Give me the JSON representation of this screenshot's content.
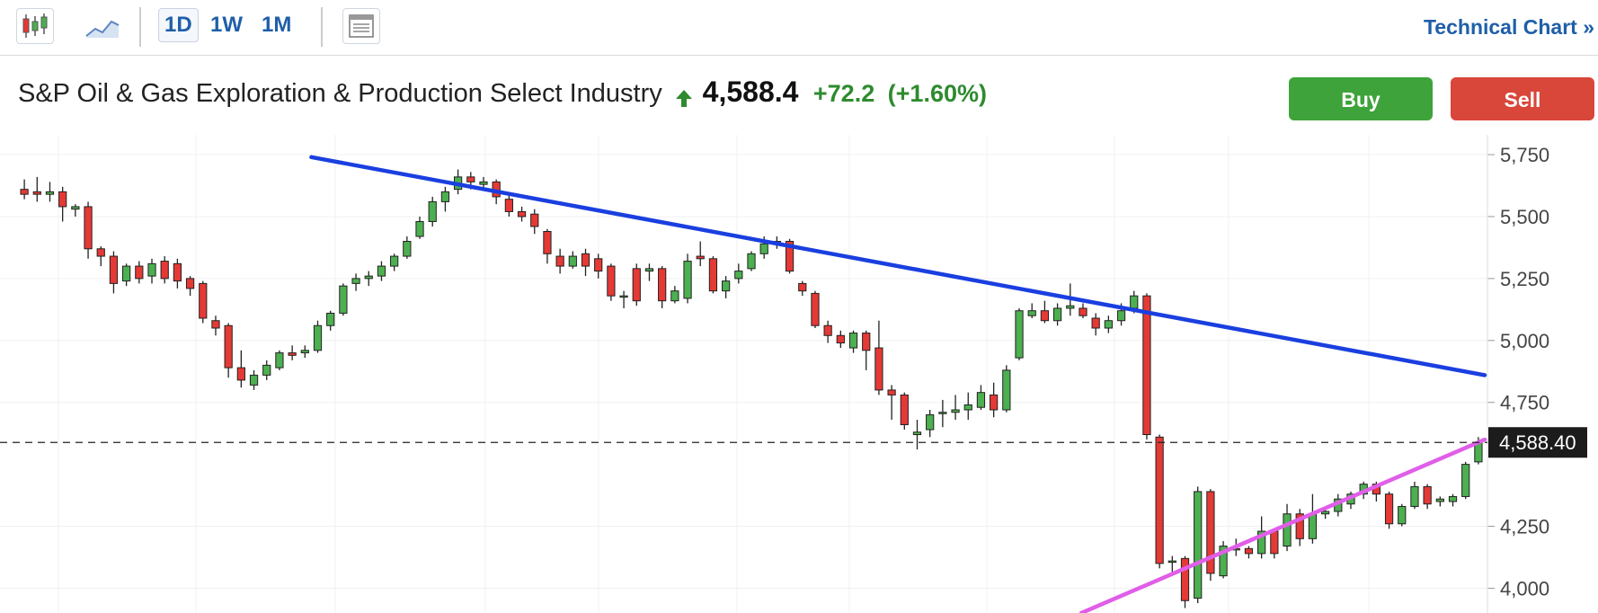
{
  "toolbar": {
    "timeframes": [
      "1D",
      "1W",
      "1M"
    ],
    "active_timeframe": "1D",
    "technical_chart_label": "Technical Chart »",
    "icons": [
      "candlestick-chart-icon",
      "line-chart-icon",
      "layout-icon"
    ]
  },
  "quote": {
    "name": "S&P Oil & Gas Exploration & Production Select Industry",
    "price": "4,588.4",
    "change": "+72.2",
    "change_pct": "(+1.60%)",
    "direction": "up"
  },
  "actions": {
    "buy_label": "Buy",
    "sell_label": "Sell"
  },
  "colors": {
    "up": "#4caf50",
    "down": "#e53935",
    "resistance": "#1a3fe0",
    "support": "#e05ee8"
  },
  "chart_data": {
    "type": "candlestick",
    "y_tick_labels": [
      "5,750",
      "5,500",
      "5,250",
      "5,000",
      "4,750",
      "4,588.40",
      "4,250",
      "4,000"
    ],
    "y_ticks": [
      5750,
      5500,
      5250,
      5000,
      4750,
      4250,
      4000
    ],
    "ylim": [
      3900,
      5830
    ],
    "last_price_label": "4,588.40",
    "last_price": 4588.4,
    "resistance_line": {
      "from": [
        0.2,
        5740
      ],
      "to": [
        1.0,
        4860
      ]
    },
    "support_line": {
      "from": [
        0.725,
        3900
      ],
      "to": [
        1.0,
        4600
      ]
    },
    "candles": [
      [
        5610,
        5590,
        5570,
        5650
      ],
      [
        5600,
        5590,
        5560,
        5660
      ],
      [
        5590,
        5600,
        5560,
        5640
      ],
      [
        5600,
        5540,
        5480,
        5620
      ],
      [
        5530,
        5540,
        5500,
        5550
      ],
      [
        5540,
        5370,
        5330,
        5560
      ],
      [
        5370,
        5340,
        5300,
        5380
      ],
      [
        5340,
        5230,
        5190,
        5360
      ],
      [
        5240,
        5300,
        5220,
        5310
      ],
      [
        5300,
        5250,
        5230,
        5320
      ],
      [
        5260,
        5310,
        5230,
        5330
      ],
      [
        5320,
        5250,
        5230,
        5340
      ],
      [
        5310,
        5240,
        5210,
        5330
      ],
      [
        5250,
        5210,
        5180,
        5260
      ],
      [
        5230,
        5090,
        5070,
        5240
      ],
      [
        5080,
        5050,
        5020,
        5100
      ],
      [
        5060,
        4890,
        4850,
        5070
      ],
      [
        4890,
        4840,
        4810,
        4960
      ],
      [
        4820,
        4860,
        4800,
        4880
      ],
      [
        4860,
        4900,
        4840,
        4920
      ],
      [
        4890,
        4950,
        4880,
        4960
      ],
      [
        4950,
        4940,
        4920,
        4980
      ],
      [
        4950,
        4960,
        4930,
        4980
      ],
      [
        4960,
        5060,
        4950,
        5080
      ],
      [
        5060,
        5110,
        5040,
        5120
      ],
      [
        5110,
        5220,
        5100,
        5230
      ],
      [
        5230,
        5250,
        5200,
        5270
      ],
      [
        5250,
        5260,
        5220,
        5280
      ],
      [
        5260,
        5300,
        5240,
        5320
      ],
      [
        5300,
        5340,
        5280,
        5350
      ],
      [
        5340,
        5400,
        5330,
        5420
      ],
      [
        5420,
        5480,
        5410,
        5500
      ],
      [
        5480,
        5560,
        5460,
        5580
      ],
      [
        5560,
        5600,
        5520,
        5620
      ],
      [
        5610,
        5660,
        5590,
        5690
      ],
      [
        5660,
        5640,
        5610,
        5680
      ],
      [
        5630,
        5640,
        5610,
        5660
      ],
      [
        5640,
        5580,
        5550,
        5650
      ],
      [
        5570,
        5520,
        5500,
        5590
      ],
      [
        5520,
        5500,
        5480,
        5540
      ],
      [
        5510,
        5460,
        5430,
        5530
      ],
      [
        5440,
        5350,
        5310,
        5450
      ],
      [
        5340,
        5300,
        5270,
        5370
      ],
      [
        5300,
        5340,
        5290,
        5360
      ],
      [
        5350,
        5300,
        5260,
        5370
      ],
      [
        5330,
        5280,
        5250,
        5350
      ],
      [
        5300,
        5180,
        5160,
        5310
      ],
      [
        5180,
        5180,
        5130,
        5200
      ],
      [
        5290,
        5160,
        5140,
        5310
      ],
      [
        5280,
        5290,
        5240,
        5310
      ],
      [
        5290,
        5160,
        5130,
        5300
      ],
      [
        5160,
        5200,
        5150,
        5220
      ],
      [
        5170,
        5320,
        5150,
        5350
      ],
      [
        5340,
        5330,
        5300,
        5400
      ],
      [
        5330,
        5200,
        5190,
        5340
      ],
      [
        5200,
        5240,
        5170,
        5260
      ],
      [
        5250,
        5280,
        5230,
        5310
      ],
      [
        5290,
        5350,
        5280,
        5360
      ],
      [
        5350,
        5390,
        5330,
        5420
      ],
      [
        5400,
        5390,
        5370,
        5420
      ],
      [
        5400,
        5280,
        5270,
        5410
      ],
      [
        5230,
        5200,
        5180,
        5240
      ],
      [
        5190,
        5060,
        5050,
        5200
      ],
      [
        5060,
        5020,
        4990,
        5080
      ],
      [
        5020,
        4990,
        4970,
        5040
      ],
      [
        4970,
        5030,
        4950,
        5040
      ],
      [
        5030,
        4960,
        4880,
        5040
      ],
      [
        4970,
        4800,
        4780,
        5080
      ],
      [
        4800,
        4780,
        4680,
        4820
      ],
      [
        4780,
        4660,
        4640,
        4790
      ],
      [
        4620,
        4630,
        4560,
        4680
      ],
      [
        4640,
        4700,
        4610,
        4720
      ],
      [
        4710,
        4710,
        4650,
        4760
      ],
      [
        4710,
        4720,
        4680,
        4780
      ],
      [
        4720,
        4740,
        4680,
        4790
      ],
      [
        4730,
        4790,
        4720,
        4820
      ],
      [
        4780,
        4720,
        4690,
        4830
      ],
      [
        4720,
        4880,
        4710,
        4900
      ],
      [
        4930,
        5120,
        4920,
        5130
      ],
      [
        5100,
        5120,
        5090,
        5150
      ],
      [
        5120,
        5080,
        5070,
        5160
      ],
      [
        5080,
        5130,
        5060,
        5150
      ],
      [
        5130,
        5140,
        5100,
        5230
      ],
      [
        5130,
        5100,
        5090,
        5150
      ],
      [
        5090,
        5050,
        5020,
        5110
      ],
      [
        5050,
        5080,
        5030,
        5100
      ],
      [
        5080,
        5120,
        5060,
        5150
      ],
      [
        5130,
        5180,
        5110,
        5200
      ],
      [
        5180,
        4620,
        4600,
        5190
      ],
      [
        4610,
        4100,
        4080,
        4620
      ],
      [
        4110,
        4110,
        4050,
        4130
      ],
      [
        4120,
        3950,
        3920,
        4130
      ],
      [
        3960,
        4390,
        3940,
        4410
      ],
      [
        4390,
        4060,
        4030,
        4400
      ],
      [
        4050,
        4170,
        4040,
        4190
      ],
      [
        4160,
        4160,
        4130,
        4200
      ],
      [
        4160,
        4140,
        4120,
        4170
      ],
      [
        4140,
        4230,
        4120,
        4290
      ],
      [
        4230,
        4140,
        4120,
        4240
      ],
      [
        4170,
        4300,
        4150,
        4340
      ],
      [
        4300,
        4200,
        4170,
        4320
      ],
      [
        4200,
        4300,
        4180,
        4380
      ],
      [
        4300,
        4310,
        4280,
        4320
      ],
      [
        4310,
        4360,
        4290,
        4380
      ],
      [
        4340,
        4380,
        4320,
        4390
      ],
      [
        4380,
        4420,
        4360,
        4430
      ],
      [
        4420,
        4380,
        4350,
        4430
      ],
      [
        4380,
        4260,
        4240,
        4390
      ],
      [
        4260,
        4330,
        4250,
        4340
      ],
      [
        4330,
        4410,
        4320,
        4430
      ],
      [
        4410,
        4340,
        4320,
        4420
      ],
      [
        4350,
        4360,
        4330,
        4370
      ],
      [
        4350,
        4370,
        4330,
        4380
      ],
      [
        4370,
        4500,
        4360,
        4510
      ],
      [
        4510,
        4588,
        4500,
        4610
      ]
    ]
  }
}
